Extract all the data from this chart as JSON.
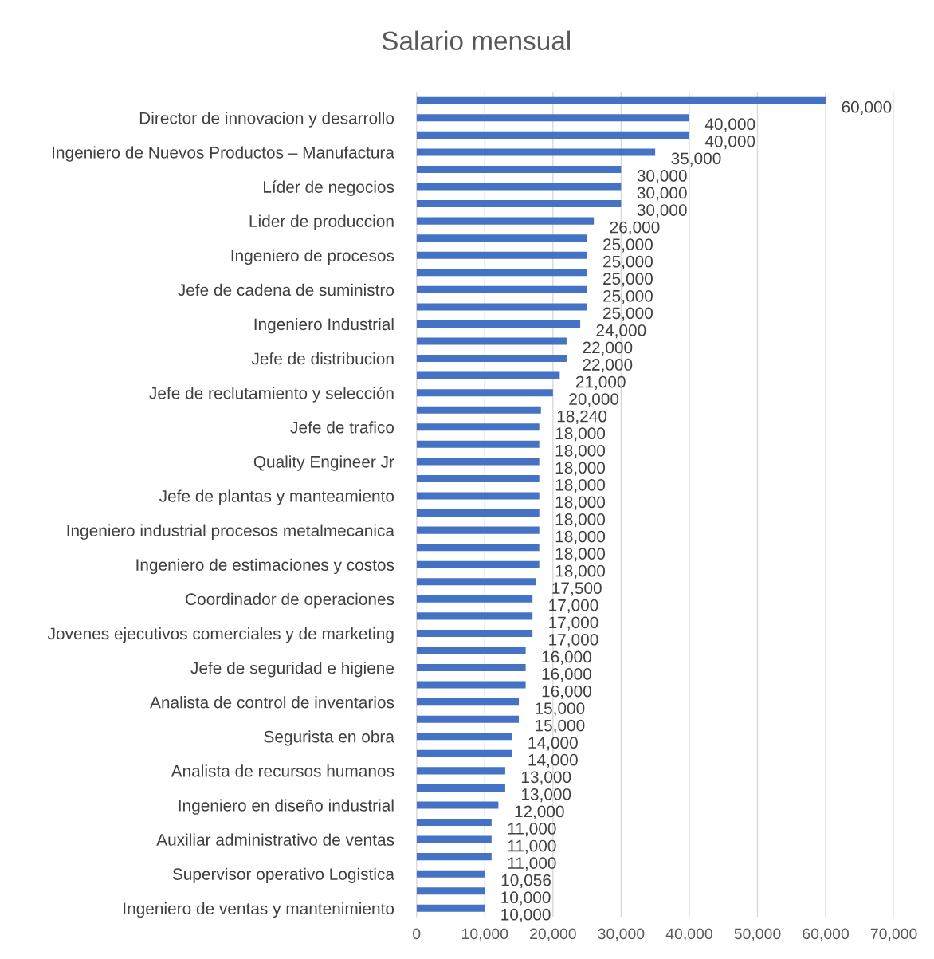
{
  "chart_data": {
    "type": "bar",
    "orientation": "horizontal",
    "title": "Salario mensual",
    "categories": [
      null,
      "Director de innovacion y desarrollo",
      null,
      "Ingeniero de Nuevos Productos – Manufactura",
      null,
      "Líder de negocios",
      null,
      "Lider de produccion",
      null,
      "Ingeniero de procesos",
      null,
      "Jefe de cadena de suministro",
      null,
      "Ingeniero Industrial",
      null,
      "Jefe de distribucion",
      null,
      "Jefe de reclutamiento y selección",
      null,
      "Jefe de trafico",
      null,
      "Quality Engineer Jr",
      null,
      "Jefe de plantas y manteamiento",
      null,
      "Ingeniero industrial procesos metalmecanica",
      null,
      "Ingeniero de estimaciones y costos",
      null,
      "Coordinador de operaciones",
      null,
      "Jovenes ejecutivos comerciales y de marketing",
      null,
      "Jefe de seguridad e higiene",
      null,
      "Analista de control de inventarios",
      null,
      "Segurista en obra",
      null,
      "Analista de recursos humanos",
      null,
      "Ingeniero en diseño industrial",
      null,
      "Auxiliar administrativo de ventas",
      null,
      "Supervisor operativo Logistica",
      null,
      "Ingeniero de ventas y mantenimiento"
    ],
    "values": [
      60000,
      40000,
      40000,
      35000,
      30000,
      30000,
      30000,
      26000,
      25000,
      25000,
      25000,
      25000,
      25000,
      24000,
      22000,
      22000,
      21000,
      20000,
      18240,
      18000,
      18000,
      18000,
      18000,
      18000,
      18000,
      18000,
      18000,
      18000,
      17500,
      17000,
      17000,
      17000,
      16000,
      16000,
      16000,
      15000,
      15000,
      14000,
      14000,
      13000,
      13000,
      12000,
      11000,
      11000,
      11000,
      10056,
      10000,
      10000
    ],
    "value_labels": [
      "60,000",
      "40,000",
      "40,000",
      "35,000",
      "30,000",
      "30,000",
      "30,000",
      "26,000",
      "25,000",
      "25,000",
      "25,000",
      "25,000",
      "25,000",
      "24,000",
      "22,000",
      "22,000",
      "21,000",
      "20,000",
      "18,240",
      "18,000",
      "18,000",
      "18,000",
      "18,000",
      "18,000",
      "18,000",
      "18,000",
      "18,000",
      "18,000",
      "17,500",
      "17,000",
      "17,000",
      "17,000",
      "16,000",
      "16,000",
      "16,000",
      "15,000",
      "15,000",
      "14,000",
      "14,000",
      "13,000",
      "13,000",
      "12,000",
      "11,000",
      "11,000",
      "11,000",
      "10,056",
      "10,000",
      "10,000"
    ],
    "color": "#4472c4",
    "xlim": [
      0,
      70000
    ],
    "xticks": [
      0,
      {
        "value": 10000,
        "label": "10,000"
      },
      {
        "value": 20000,
        "label": "20,000"
      },
      {
        "value": 30000,
        "label": "30,000"
      },
      {
        "value": 40000,
        "label": "40,000"
      },
      {
        "value": 50000,
        "label": "50,000"
      },
      {
        "value": 60000,
        "label": "60,000"
      },
      {
        "value": 70000,
        "label": "70,000"
      }
    ],
    "grid": "x",
    "legend": false
  }
}
